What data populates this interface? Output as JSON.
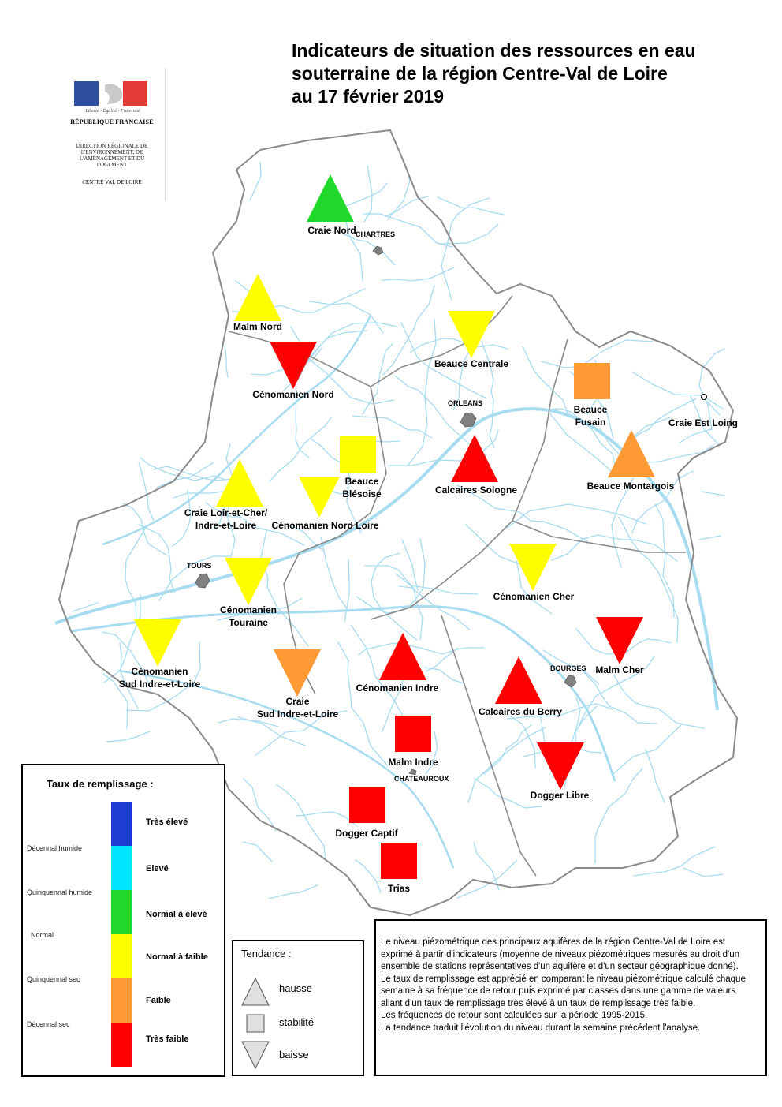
{
  "title": {
    "line1": "Indicateurs de situation des ressources en eau",
    "line2": "souterraine de la région Centre-Val de Loire",
    "line3": "au 17 février 2019"
  },
  "logo": {
    "motto": "Liberté • Égalité • Fraternité",
    "republic": "RÉPUBLIQUE FRANÇAISE",
    "direction": "DIRECTION RÉGIONALE DE L'ENVIRONNEMENT, DE L'AMÉNAGEMENT ET DU LOGEMENT",
    "region": "CENTRE VAL DE LOIRE",
    "colors": {
      "blue": "#2e4fa0",
      "red": "#e53935"
    }
  },
  "colors": {
    "tres_eleve": "#1e3cd2",
    "eleve": "#00e5ff",
    "normal_a_eleve": "#22d82a",
    "normal_a_faible": "#ffff00",
    "faible": "#ff9933",
    "tres_faible": "#ff0000",
    "rivers": "#a6dbf0",
    "boundaries": "#777777",
    "city": "#808080"
  },
  "cities": [
    {
      "name": "CHARTRES"
    },
    {
      "name": "ORLEANS"
    },
    {
      "name": "TOURS"
    },
    {
      "name": "BOURGES"
    },
    {
      "name": "CHATEAUROUX"
    }
  ],
  "indicators": [
    {
      "name": "Craie Nord",
      "level": "normal_a_eleve",
      "trend": "hausse"
    },
    {
      "name": "Malm Nord",
      "level": "normal_a_faible",
      "trend": "hausse"
    },
    {
      "name": "Cénomanien Nord",
      "level": "tres_faible",
      "trend": "baisse"
    },
    {
      "name": "Beauce Centrale",
      "level": "normal_a_faible",
      "trend": "baisse"
    },
    {
      "name": "Beauce\nFusain",
      "level": "faible",
      "trend": "stabilite"
    },
    {
      "name": "Craie Est Loing",
      "level": "",
      "trend": ""
    },
    {
      "name": "Beauce\nBlésoise",
      "level": "normal_a_faible",
      "trend": "stabilite"
    },
    {
      "name": "Calcaires Sologne",
      "level": "tres_faible",
      "trend": "hausse"
    },
    {
      "name": "Beauce Montargois",
      "level": "faible",
      "trend": "hausse"
    },
    {
      "name": "Craie Loir-et-Cher/\nIndre-et-Loire",
      "level": "normal_a_faible",
      "trend": "hausse"
    },
    {
      "name": "Cénomanien Nord Loire",
      "level": "normal_a_faible",
      "trend": "baisse"
    },
    {
      "name": "Cénomanien\nTouraine",
      "level": "normal_a_faible",
      "trend": "baisse"
    },
    {
      "name": "Cénomanien Cher",
      "level": "normal_a_faible",
      "trend": "baisse"
    },
    {
      "name": "Cénomanien\nSud Indre-et-Loire",
      "level": "normal_a_faible",
      "trend": "baisse"
    },
    {
      "name": "Craie\nSud Indre-et-Loire",
      "level": "faible",
      "trend": "baisse"
    },
    {
      "name": "Cénomanien Indre",
      "level": "tres_faible",
      "trend": "hausse"
    },
    {
      "name": "Calcaires du Berry",
      "level": "tres_faible",
      "trend": "hausse"
    },
    {
      "name": "Malm Cher",
      "level": "tres_faible",
      "trend": "baisse"
    },
    {
      "name": "Malm Indre",
      "level": "tres_faible",
      "trend": "stabilite"
    },
    {
      "name": "Dogger Libre",
      "level": "tres_faible",
      "trend": "baisse"
    },
    {
      "name": "Dogger Captif",
      "level": "tres_faible",
      "trend": "stabilite"
    },
    {
      "name": "Trias",
      "level": "tres_faible",
      "trend": "stabilite"
    }
  ],
  "legend": {
    "title": "Taux de remplissage :",
    "classes": [
      {
        "label": "Très élevé",
        "color": "#1e3cd2"
      },
      {
        "label": "Elevé",
        "color": "#00e5ff"
      },
      {
        "label": "Normal à élevé",
        "color": "#22d82a"
      },
      {
        "label": "Normal à faible",
        "color": "#ffff00"
      },
      {
        "label": "Faible",
        "color": "#ff9933"
      },
      {
        "label": "Très faible",
        "color": "#ff0000"
      }
    ],
    "bounds": [
      "Décennal humide",
      "Quinquennal humide",
      "Normal",
      "Quinquennal sec",
      "Décennal sec"
    ]
  },
  "tendance": {
    "title": "Tendance :",
    "hausse": "hausse",
    "stabilite": "stabilité",
    "baisse": "baisse"
  },
  "notes": "Le niveau piézométrique des principaux aquifères de la région Centre-Val de Loire est exprimé à partir d'indicateurs (moyenne de niveaux piézométriques mesurés au droit d'un ensemble de stations représentatives d'un aquifère et d'un secteur géographique donné).\nLe taux de remplissage est apprécié en comparant le niveau piézométrique calculé chaque semaine à sa fréquence de retour puis exprimé par classes dans une gamme de valeurs allant d'un taux de remplissage très élevé à un taux de remplissage très faible.\nLes fréquences de retour sont calculées sur la période 1995-2015.\nLa tendance traduit l'évolution du niveau durant la semaine précédent l'analyse."
}
